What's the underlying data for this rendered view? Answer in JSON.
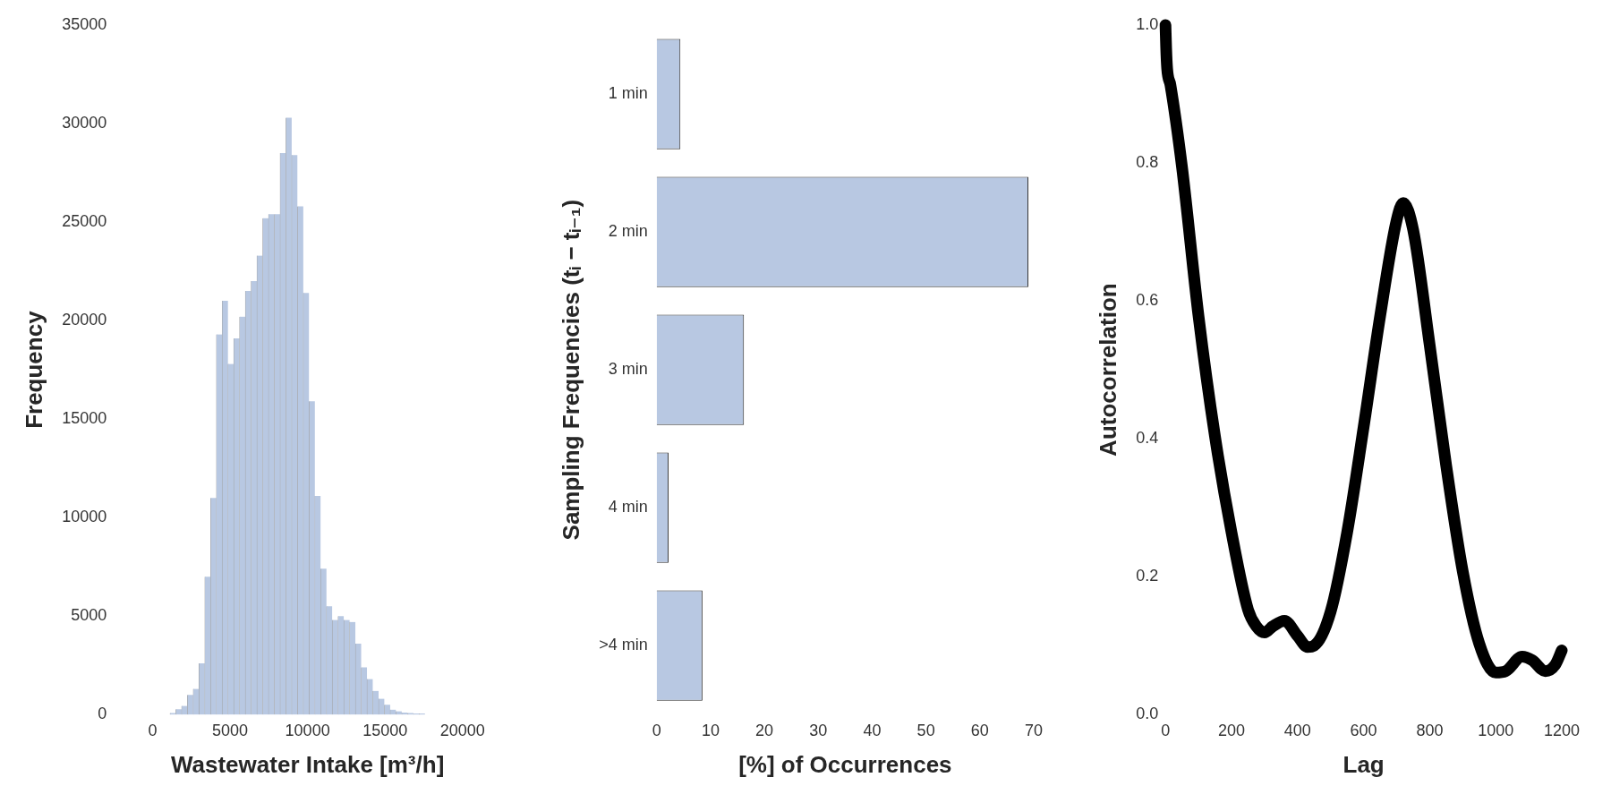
{
  "chart_data": [
    {
      "type": "histogram",
      "xlabel": "Wastewater Intake [m³/h]",
      "ylabel": "Frequency",
      "color": "#b8c8e2",
      "bins": [
        0,
        374,
        748,
        1122,
        1496,
        1870,
        2244,
        2618,
        2992,
        3366,
        3740,
        4114,
        4488,
        4862,
        5236,
        5610,
        5984,
        6358,
        6732,
        7106,
        7480,
        7854,
        8228,
        8602,
        8976,
        9350,
        9724,
        10098,
        10472,
        10846,
        11220,
        11594,
        11968,
        12342,
        12716,
        13090,
        13464,
        13838,
        14212,
        14586,
        14960,
        15334,
        15708,
        16082,
        16456,
        16830,
        17204,
        17578,
        17952,
        18326,
        18700
      ],
      "values": [
        null,
        null,
        null,
        80,
        270,
        440,
        1000,
        1300,
        2600,
        7000,
        11000,
        19300,
        21000,
        17800,
        19100,
        20200,
        21500,
        22000,
        23300,
        25200,
        25400,
        25400,
        28500,
        30300,
        28400,
        25800,
        21400,
        15900,
        11100,
        7400,
        5500,
        4800,
        5000,
        4800,
        4700,
        3600,
        2400,
        1800,
        1200,
        800,
        500,
        250,
        170,
        100,
        80,
        60,
        60,
        null,
        null,
        null
      ],
      "xlim": [
        0,
        20000
      ],
      "xticks": [
        0,
        5000,
        10000,
        15000,
        20000
      ],
      "ylim": [
        0,
        35000
      ],
      "yticks": [
        0,
        5000,
        10000,
        15000,
        20000,
        25000,
        30000,
        35000
      ],
      "grid": false
    },
    {
      "type": "bar",
      "orientation": "horizontal",
      "xlabel": "[%] of Occurrences",
      "ylabel": "Sampling Frequencies (tᵢ − tᵢ₋₁)",
      "color": "#b8c8e2",
      "categories": [
        "1 min",
        "2 min",
        "3 min",
        "4 min",
        ">4 min"
      ],
      "values": [
        4.4,
        69.0,
        16.2,
        2.2,
        8.5
      ],
      "xlim": [
        0,
        70
      ],
      "xticks": [
        0,
        10,
        20,
        30,
        40,
        50,
        60,
        70
      ],
      "grid": false
    },
    {
      "type": "line",
      "xlabel": "Lag",
      "ylabel": "Autocorrelation",
      "marker": "none",
      "series": [
        {
          "color": "#000000",
          "x": [
            0,
            2,
            5,
            15,
            50,
            100,
            150,
            200,
            250,
            275,
            300,
            325,
            360,
            400,
            430,
            450,
            500,
            550,
            600,
            650,
            700,
            720,
            750,
            800,
            850,
            900,
            950,
            1000,
            1030,
            1080,
            1110,
            1150,
            1180,
            1200
          ],
          "values": [
            1.0,
            0.967,
            0.937,
            0.913,
            0.794,
            0.578,
            0.403,
            0.264,
            0.152,
            0.128,
            0.119,
            0.128,
            0.136,
            0.114,
            0.098,
            0.1,
            0.149,
            0.264,
            0.417,
            0.578,
            0.717,
            0.742,
            0.703,
            0.536,
            0.361,
            0.208,
            0.103,
            0.061,
            0.063,
            0.084,
            0.079,
            0.063,
            0.072,
            0.093
          ]
        }
      ],
      "xlim": [
        0,
        1200
      ],
      "xticks": [
        0,
        200,
        400,
        600,
        800,
        1000,
        1200
      ],
      "ylim": [
        0,
        1.0
      ],
      "yticks": [
        {
          "value": 0,
          "label": "0.0"
        },
        {
          "value": 0.2,
          "label": "0.2"
        },
        {
          "value": 0.4,
          "label": "0.4"
        },
        {
          "value": 0.6,
          "label": "0.6"
        },
        {
          "value": 0.8,
          "label": "0.8"
        },
        {
          "value": 1.0,
          "label": "1.0"
        }
      ],
      "grid": false
    }
  ]
}
